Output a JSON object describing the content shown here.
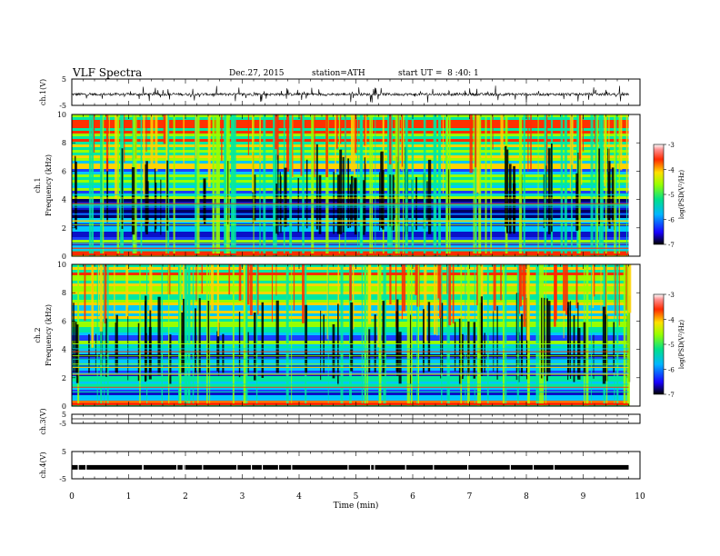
{
  "header": {
    "title": "VLF Spectra",
    "date": "Dec.27, 2015",
    "station": "station=ATH",
    "start_ut": "start UT =  8 :40: 1"
  },
  "chart_data": [
    {
      "type": "line",
      "title": "",
      "ylabel": "ch.1(V)",
      "ylim": [
        -5,
        5
      ],
      "yticks": [
        "5",
        "-5"
      ],
      "xlim": [
        0,
        10
      ],
      "signal_baseline": -0.8,
      "signal_span_min": 9.8,
      "series": [
        {
          "values": "waveform (noisy, ~-0.8 V baseline with spikes)"
        }
      ]
    },
    {
      "type": "heatmap",
      "ylabel": "Frequency (kHz)",
      "channel_label": "ch.1",
      "ylim": [
        0,
        10
      ],
      "yticks": [
        "0",
        "2",
        "4",
        "6",
        "8",
        "10"
      ],
      "xlim": [
        0,
        10
      ],
      "colorbar": {
        "label": "log(PSD(V²/Hz)",
        "ticks": [
          "-3",
          "-4",
          "-5",
          "-6",
          "-7"
        ],
        "range": [
          -7,
          -3
        ]
      }
    },
    {
      "type": "heatmap",
      "ylabel": "Frequency (kHz)",
      "channel_label": "ch.2",
      "ylim": [
        0,
        10
      ],
      "yticks": [
        "0",
        "2",
        "4",
        "6",
        "8",
        "10"
      ],
      "xlim": [
        0,
        10
      ],
      "colorbar": {
        "label": "log(PSD(V²/Hz)",
        "ticks": [
          "-3",
          "-4",
          "-5",
          "-6",
          "-7"
        ],
        "range": [
          -7,
          -3
        ]
      }
    },
    {
      "type": "line",
      "ylabel": "ch.3(V)",
      "ylim": [
        -5,
        5
      ],
      "yticks": [
        "5",
        "-5"
      ],
      "xlim": [
        0,
        10
      ],
      "signal_baseline": 0,
      "signal_span_min": 9.8
    },
    {
      "type": "line",
      "ylabel": "ch.4(V)",
      "ylim": [
        -5,
        5
      ],
      "yticks": [
        "5",
        "-5"
      ],
      "xlim": [
        0,
        10
      ],
      "signal_baseline": -0.8,
      "signal_span_min": 9.8
    }
  ],
  "xaxis": {
    "label": "Time (min)",
    "ticks": [
      "0",
      "1",
      "2",
      "3",
      "4",
      "5",
      "6",
      "7",
      "8",
      "9",
      "10"
    ]
  }
}
